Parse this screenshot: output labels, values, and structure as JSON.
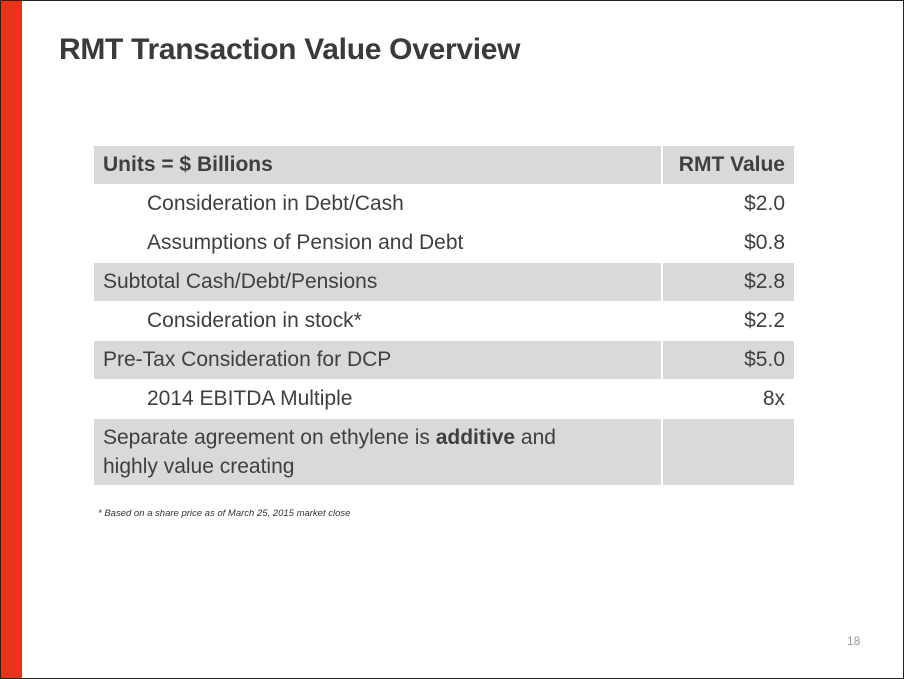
{
  "slide": {
    "title": "RMT Transaction Value Overview",
    "page_number": "18",
    "accent_color": "#e8341c"
  },
  "table": {
    "header": {
      "label": "Units = $ Billions",
      "value": "RMT Value"
    },
    "rows": [
      {
        "label": "Consideration in Debt/Cash",
        "value": "$2.0"
      },
      {
        "label": "Assumptions of Pension and Debt",
        "value": "$0.8"
      },
      {
        "label": "Subtotal Cash/Debt/Pensions",
        "value": "$2.8"
      },
      {
        "label": "Consideration in stock*",
        "value": "$2.2"
      },
      {
        "label": "Pre-Tax Consideration for DCP",
        "value": "$5.0"
      },
      {
        "label": "2014 EBITDA Multiple",
        "value": "8x"
      }
    ],
    "note_row": {
      "text_before": "Separate agreement on ethylene is ",
      "bold_text": "additive",
      "text_after_line1": " and",
      "line2": "highly value creating",
      "value": ""
    }
  },
  "footnote": "* Based on a share price as of March 25, 2015 market close"
}
